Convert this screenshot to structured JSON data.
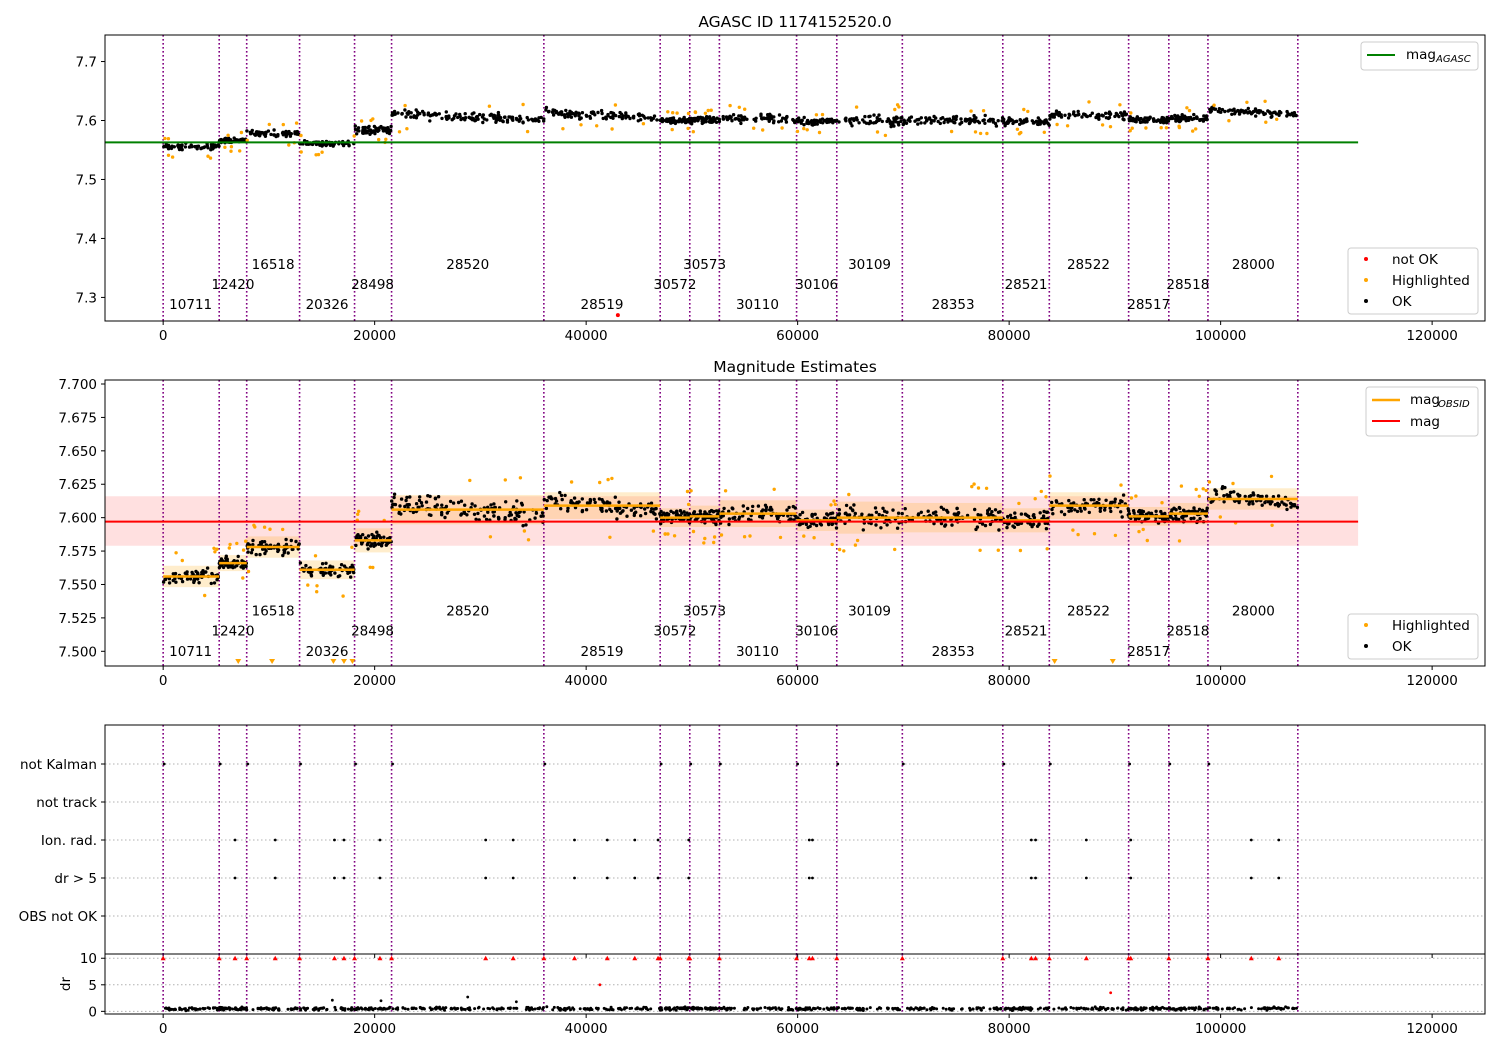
{
  "figure": {
    "title_top": "AGASC ID 1174152520.0",
    "title_middle": "Magnitude Estimates"
  },
  "chart_data": [
    {
      "type": "scatter",
      "title": "AGASC ID 1174152520.0",
      "xlabel": "",
      "ylabel": "",
      "xlim": [
        -5500,
        125000
      ],
      "ylim": [
        7.26,
        7.745
      ],
      "xticks": [
        0,
        20000,
        40000,
        60000,
        80000,
        100000,
        120000
      ],
      "yticks": [
        7.3,
        7.4,
        7.5,
        7.6,
        7.7
      ],
      "ytick_labels": [
        "7.3",
        "7.4",
        "7.5",
        "7.6",
        "7.7"
      ],
      "legend_top": {
        "position": "upper right",
        "entries": [
          {
            "label": "mag",
            "sub": "AGASC",
            "color": "#008000"
          }
        ]
      },
      "legend_bottom": {
        "position": "lower right",
        "entries": [
          {
            "label": "not OK",
            "color": "#ff0000"
          },
          {
            "label": "Highlighted",
            "color": "#ffa500"
          },
          {
            "label": "OK",
            "color": "#000000"
          }
        ]
      },
      "reference_line": {
        "name": "mag_AGASC",
        "value": 7.563,
        "xrange": [
          -5500,
          113000
        ],
        "color": "#008000"
      },
      "obsid_boundaries": [
        0,
        5300,
        7900,
        12900,
        18100,
        21600,
        36000,
        47000,
        49800,
        52600,
        59900,
        63700,
        69900,
        79400,
        83800,
        91300,
        95100,
        98800,
        107300
      ],
      "obsids": [
        {
          "label": "10711",
          "x": 2600,
          "row": 0,
          "level": 7.556,
          "spread": 0.008
        },
        {
          "label": "12420",
          "x": 6600,
          "row": 1,
          "level": 7.566,
          "spread": 0.006
        },
        {
          "label": "16518",
          "x": 10400,
          "row": 2,
          "level": 7.578,
          "spread": 0.008
        },
        {
          "label": "20326",
          "x": 15500,
          "row": 0,
          "level": 7.561,
          "spread": 0.007
        },
        {
          "label": "28498",
          "x": 19800,
          "row": 1,
          "level": 7.583,
          "spread": 0.009
        },
        {
          "label": "28520",
          "x": 28800,
          "row": 2,
          "level": 7.606,
          "spread": 0.011
        },
        {
          "label": "28519",
          "x": 41500,
          "row": 0,
          "level": 7.609,
          "spread": 0.01
        },
        {
          "label": "30572",
          "x": 48400,
          "row": 1,
          "level": 7.6,
          "spread": 0.007
        },
        {
          "label": "30573",
          "x": 51200,
          "row": 2,
          "level": 7.601,
          "spread": 0.008
        },
        {
          "label": "30110",
          "x": 56200,
          "row": 0,
          "level": 7.603,
          "spread": 0.01
        },
        {
          "label": "30106",
          "x": 61800,
          "row": 1,
          "level": 7.598,
          "spread": 0.008
        },
        {
          "label": "30109",
          "x": 66800,
          "row": 2,
          "level": 7.6,
          "spread": 0.012
        },
        {
          "label": "28353",
          "x": 74700,
          "row": 0,
          "level": 7.6,
          "spread": 0.011
        },
        {
          "label": "28521",
          "x": 81600,
          "row": 1,
          "level": 7.598,
          "spread": 0.009
        },
        {
          "label": "28522",
          "x": 87500,
          "row": 2,
          "level": 7.609,
          "spread": 0.01
        },
        {
          "label": "28517",
          "x": 93200,
          "row": 0,
          "level": 7.601,
          "spread": 0.007
        },
        {
          "label": "28518",
          "x": 96900,
          "row": 1,
          "level": 7.603,
          "spread": 0.008
        },
        {
          "label": "28000",
          "x": 103100,
          "row": 2,
          "level": 7.614,
          "spread": 0.008
        }
      ]
    },
    {
      "type": "scatter",
      "title": "Magnitude Estimates",
      "xlabel": "",
      "ylabel": "",
      "xlim": [
        -5500,
        125000
      ],
      "ylim": [
        7.489,
        7.703
      ],
      "xticks": [
        0,
        20000,
        40000,
        60000,
        80000,
        100000,
        120000
      ],
      "yticks": [
        7.5,
        7.525,
        7.55,
        7.575,
        7.6,
        7.625,
        7.65,
        7.675,
        7.7
      ],
      "ytick_labels": [
        "7.500",
        "7.525",
        "7.550",
        "7.575",
        "7.600",
        "7.625",
        "7.650",
        "7.675",
        "7.700"
      ],
      "legend_top": {
        "position": "upper right",
        "entries": [
          {
            "label": "mag",
            "sub": "OBSID",
            "color": "#ffa500"
          },
          {
            "label": "mag",
            "sub": "",
            "color": "#ff0000"
          }
        ]
      },
      "legend_bottom": {
        "position": "lower right",
        "entries": [
          {
            "label": "Highlighted",
            "color": "#ffa500"
          },
          {
            "label": "OK",
            "color": "#000000"
          }
        ]
      },
      "mag_line": {
        "value": 7.597,
        "band": [
          7.579,
          7.616
        ],
        "xrange": [
          -5500,
          113000
        ],
        "color": "#ff0000"
      }
    },
    {
      "type": "scatter",
      "title": "",
      "ycategories": [
        "OBS not OK",
        "dr > 5",
        "Ion. rad.",
        "not track",
        "not Kalman"
      ],
      "xlim": [
        -5500,
        125000
      ],
      "xticks": [
        0,
        20000,
        40000,
        60000,
        80000,
        100000,
        120000
      ],
      "flag_points": {
        "not Kalman": [
          0,
          5300,
          7900,
          12900,
          18100,
          21600,
          36000,
          47000,
          49800,
          52600,
          59900,
          63700,
          69900,
          79400,
          83800,
          91300,
          95100,
          98800
        ],
        "not track": [],
        "Ion. rad.": [
          6800,
          10600,
          16200,
          17100,
          20500,
          30500,
          33100,
          38900,
          42000,
          44600,
          46800,
          49700,
          61100,
          61400,
          82100,
          82500,
          87300,
          91500,
          102900,
          105500
        ],
        "dr > 5": [
          6800,
          10600,
          16200,
          17100,
          20500,
          30500,
          33100,
          38900,
          42000,
          44600,
          46800,
          49700,
          61100,
          61400,
          82100,
          82500,
          87300,
          91500,
          102900,
          105500
        ],
        "OBS not OK": []
      },
      "dr_panel": {
        "ylabel": "dr",
        "ylim": [
          -0.5,
          10.8
        ],
        "yticks": [
          0,
          5,
          10
        ],
        "clip_value": 10
      }
    }
  ]
}
